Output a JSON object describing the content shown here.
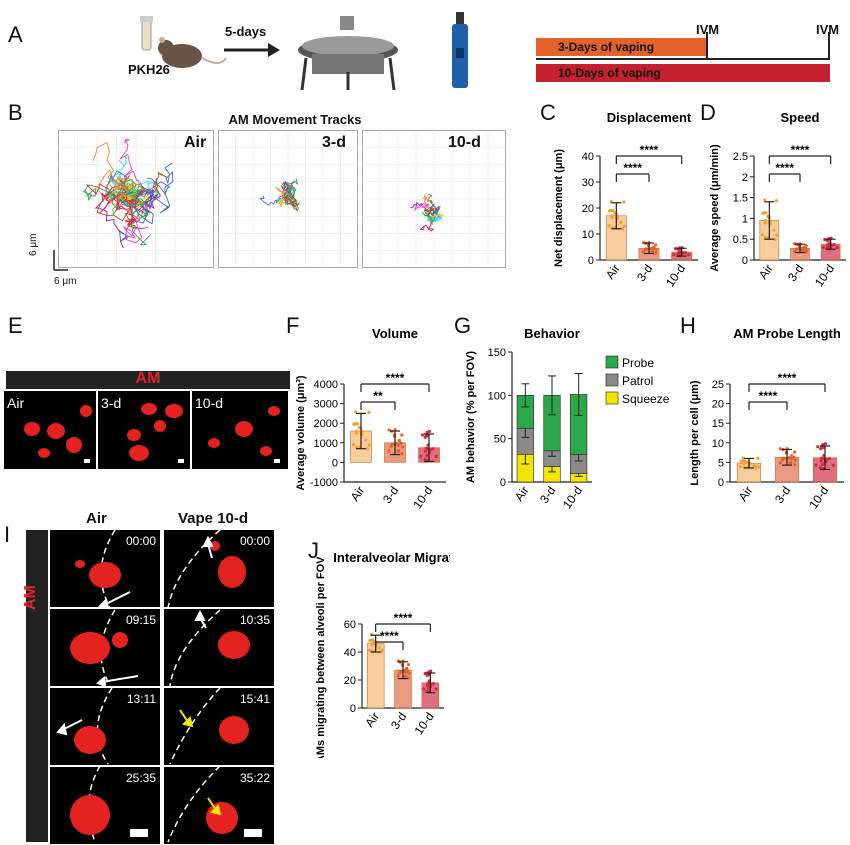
{
  "panel_labels": {
    "A": "A",
    "B": "B",
    "C": "C",
    "D": "D",
    "E": "E",
    "F": "F",
    "G": "G",
    "H": "H",
    "I": "I",
    "J": "J"
  },
  "panelA": {
    "stain": "PKH26",
    "arrow_label": "5-days",
    "bar1": "3-Days of vaping",
    "bar2": "10-Days of vaping",
    "ivm1": "IVM",
    "ivm2": "IVM",
    "colors": {
      "bar1": "#e2622a",
      "bar2": "#c4202e"
    }
  },
  "panelB": {
    "title": "AM Movement Tracks",
    "groups": [
      "Air",
      "3-d",
      "10-d"
    ],
    "scale_y": "6 μm",
    "scale_x": "6 μm"
  },
  "panelE": {
    "header": "AM",
    "groups": [
      "Air",
      "3-d",
      "10-d"
    ]
  },
  "panelI": {
    "side_label": "AM",
    "col_air": "Air",
    "col_vape": "Vape 10-d",
    "air_times": [
      "00:00",
      "09:15",
      "13:11",
      "25:35"
    ],
    "vape_times": [
      "00:00",
      "10:35",
      "15:41",
      "35:22"
    ]
  },
  "chart_data": [
    {
      "id": "C",
      "type": "bar",
      "title": "Displacement",
      "ylabel": "Net displacement (μm)",
      "categories": [
        "Air",
        "3-d",
        "10-d"
      ],
      "values": [
        17,
        4.5,
        3
      ],
      "errors": [
        5,
        2,
        1.5
      ],
      "ylim": [
        0,
        40
      ],
      "yticks": [
        0,
        10,
        20,
        30,
        40
      ],
      "sig": [
        "****",
        "****"
      ],
      "colors": [
        "#f6c58a",
        "#e8876a",
        "#d9566a"
      ]
    },
    {
      "id": "D",
      "type": "bar",
      "title": "Speed",
      "ylabel": "Average speed (μm/min)",
      "categories": [
        "Air",
        "3-d",
        "10-d"
      ],
      "values": [
        0.95,
        0.28,
        0.38
      ],
      "errors": [
        0.45,
        0.1,
        0.12
      ],
      "ylim": [
        0,
        2.5
      ],
      "yticks": [
        0.0,
        0.5,
        1.0,
        1.5,
        2.0,
        2.5
      ],
      "sig": [
        "****",
        "****"
      ],
      "colors": [
        "#f6c58a",
        "#e8876a",
        "#d9566a"
      ]
    },
    {
      "id": "F",
      "type": "bar",
      "title": "Volume",
      "ylabel": "Average volume (μm³)",
      "categories": [
        "Air",
        "3-d",
        "10-d"
      ],
      "values": [
        1600,
        1000,
        750
      ],
      "errors": [
        900,
        600,
        700
      ],
      "ylim": [
        -1000,
        4000
      ],
      "yticks": [
        -1000,
        0,
        1000,
        2000,
        3000,
        4000
      ],
      "sig": [
        "**",
        "****"
      ],
      "colors": [
        "#f6c58a",
        "#e8876a",
        "#d9566a"
      ]
    },
    {
      "id": "G",
      "type": "bar",
      "title": "Behavior",
      "ylabel": "AM behavior (% per FOV)",
      "categories": [
        "Air",
        "3-d",
        "10-d"
      ],
      "series": [
        {
          "name": "Squeeze",
          "values": [
            32,
            18,
            10
          ],
          "color": "#f2e600"
        },
        {
          "name": "Patrol",
          "values": [
            30,
            18,
            22
          ],
          "color": "#8a8a8a"
        },
        {
          "name": "Probe",
          "values": [
            38,
            64,
            69
          ],
          "color": "#2aa84a"
        }
      ],
      "ylim": [
        0,
        150
      ],
      "yticks": [
        0,
        50,
        100,
        150
      ],
      "legend": "top-right"
    },
    {
      "id": "H",
      "type": "bar",
      "title": "AM Probe Length",
      "ylabel": "Length per cell (μm)",
      "categories": [
        "Air",
        "3-d",
        "10-d"
      ],
      "values": [
        4.8,
        6.3,
        6.2
      ],
      "errors": [
        1.2,
        2,
        3
      ],
      "ylim": [
        0,
        25
      ],
      "yticks": [
        0,
        5,
        10,
        15,
        20,
        25
      ],
      "sig": [
        "****",
        "****"
      ],
      "colors": [
        "#f6c58a",
        "#e8876a",
        "#d9566a"
      ]
    },
    {
      "id": "J",
      "type": "bar",
      "title": "Interalveolar Migration",
      "ylabel": "% AMs migrating between alveoli per FOV",
      "categories": [
        "Air",
        "3-d",
        "10-d"
      ],
      "values": [
        46,
        27,
        18
      ],
      "errors": [
        6,
        6,
        7
      ],
      "ylim": [
        0,
        60
      ],
      "yticks": [
        0,
        20,
        40,
        60
      ],
      "sig": [
        "****",
        "****"
      ],
      "colors": [
        "#f6c58a",
        "#e8876a",
        "#d9566a"
      ]
    }
  ]
}
